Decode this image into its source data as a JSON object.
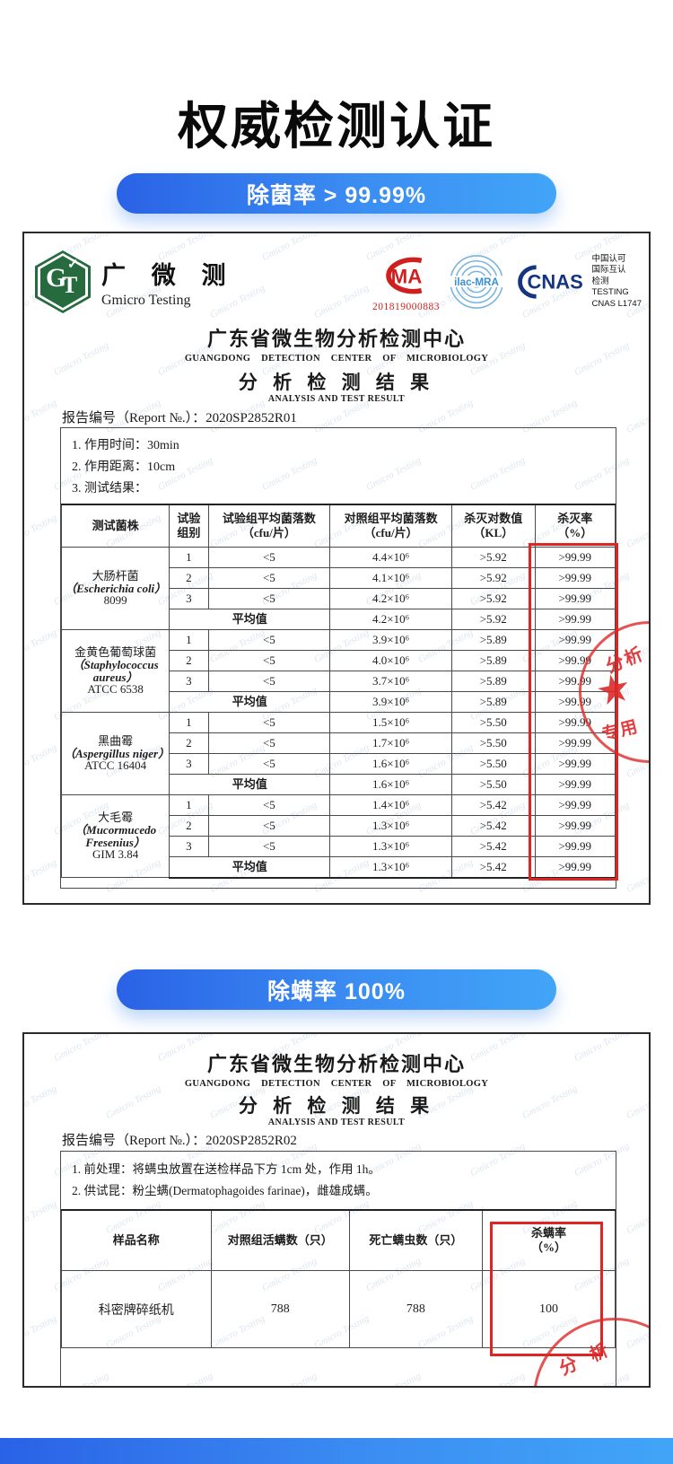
{
  "page": {
    "title": "权威检测认证",
    "banner1": "除菌率 > 99.99%",
    "banner2": "除螨率 100%"
  },
  "watermark": "Gmicro Testing",
  "colors": {
    "banner_gradient_left": "#2a62e6",
    "banner_gradient_right": "#41a5f7",
    "highlight_red": "#e02424",
    "cma_red": "#cf1f1f",
    "cnas_navy": "#16357f",
    "ilac_blue": "#3a8fd0",
    "gmicro_green": "#256b3e"
  },
  "lab": {
    "logo_letters": "GT",
    "logo_check": "✓",
    "name_cn": "广 微 测",
    "name_en": "Gmicro Testing",
    "cma_letters": "MA",
    "cma_no": "201819000883",
    "ilac_label": "ilac-MRA",
    "cnas_label": "CNAS",
    "accr_lines": [
      "中国认可",
      "国际互认",
      "检测",
      "TESTING",
      "CNAS L1747"
    ]
  },
  "header": {
    "center_cn": "广东省微生物分析检测中心",
    "center_en": "GUANGDONG DETECTION CENTER OF MICROBIOLOGY",
    "result_cn": "分 析 检 测 结 果",
    "result_en": "ANALYSIS AND TEST RESULT",
    "report_label": "报告编号（Report №.）："
  },
  "cert1": {
    "report_no": "2020SP2852R01",
    "conditions": [
      "1. 作用时间：30min",
      "2. 作用距离：10cm",
      "3. 测试结果："
    ],
    "table": {
      "headers": [
        "测试菌株",
        "试验\n组别",
        "试验组平均菌落数\n（cfu/片）",
        "对照组平均菌落数\n（cfu/片）",
        "杀灭对数值\n（KL）",
        "杀灭率\n（%）"
      ],
      "avg_label": "平均值",
      "groups": [
        {
          "name_cn": "大肠杆菌",
          "name_la": "（Escherichia coli）",
          "strain": "8099",
          "rows": [
            [
              "1",
              "<5",
              "4.4×10⁶",
              ">5.92",
              ">99.99"
            ],
            [
              "2",
              "<5",
              "4.1×10⁶",
              ">5.92",
              ">99.99"
            ],
            [
              "3",
              "<5",
              "4.2×10⁶",
              ">5.92",
              ">99.99"
            ]
          ],
          "avg": [
            "4.2×10⁶",
            ">5.92",
            ">99.99"
          ]
        },
        {
          "name_cn": "金黄色葡萄球菌",
          "name_la": "（Staphylococcus aureus）",
          "strain": "ATCC 6538",
          "rows": [
            [
              "1",
              "<5",
              "3.9×10⁶",
              ">5.89",
              ">99.99"
            ],
            [
              "2",
              "<5",
              "4.0×10⁶",
              ">5.89",
              ">99.99"
            ],
            [
              "3",
              "<5",
              "3.7×10⁶",
              ">5.89",
              ">99.99"
            ]
          ],
          "avg": [
            "3.9×10⁶",
            ">5.89",
            ">99.99"
          ]
        },
        {
          "name_cn": "黑曲霉",
          "name_la": "（Aspergillus niger）",
          "strain": "ATCC 16404",
          "rows": [
            [
              "1",
              "<5",
              "1.5×10⁶",
              ">5.50",
              ">99.99"
            ],
            [
              "2",
              "<5",
              "1.7×10⁶",
              ">5.50",
              ">99.99"
            ],
            [
              "3",
              "<5",
              "1.6×10⁶",
              ">5.50",
              ">99.99"
            ]
          ],
          "avg": [
            "1.6×10⁶",
            ">5.50",
            ">99.99"
          ]
        },
        {
          "name_cn": "大毛霉",
          "name_la": "（Mucormucedo Fresenius）",
          "strain": "GIM 3.84",
          "rows": [
            [
              "1",
              "<5",
              "1.4×10⁶",
              ">5.42",
              ">99.99"
            ],
            [
              "2",
              "<5",
              "1.3×10⁶",
              ">5.42",
              ">99.99"
            ],
            [
              "3",
              "<5",
              "1.3×10⁶",
              ">5.42",
              ">99.99"
            ]
          ],
          "avg": [
            "1.3×10⁶",
            ">5.42",
            ">99.99"
          ]
        }
      ]
    },
    "stamp": {
      "top": "分析",
      "bottom": "专用"
    }
  },
  "cert2": {
    "report_no": "2020SP2852R02",
    "conditions": [
      "1. 前处理：将螨虫放置在送检样品下方 1cm 处，作用 1h。",
      "2. 供试昆：粉尘螨(Dermatophagoides farinae)，雌雄成螨。"
    ],
    "table": {
      "headers": [
        "样品名称",
        "对照组活螨数（只）",
        "死亡螨虫数（只）",
        "杀螨率\n（%）"
      ],
      "row": [
        "科密牌碎纸机",
        "788",
        "788",
        "100"
      ]
    },
    "stamp": {
      "text": "分 析"
    }
  }
}
